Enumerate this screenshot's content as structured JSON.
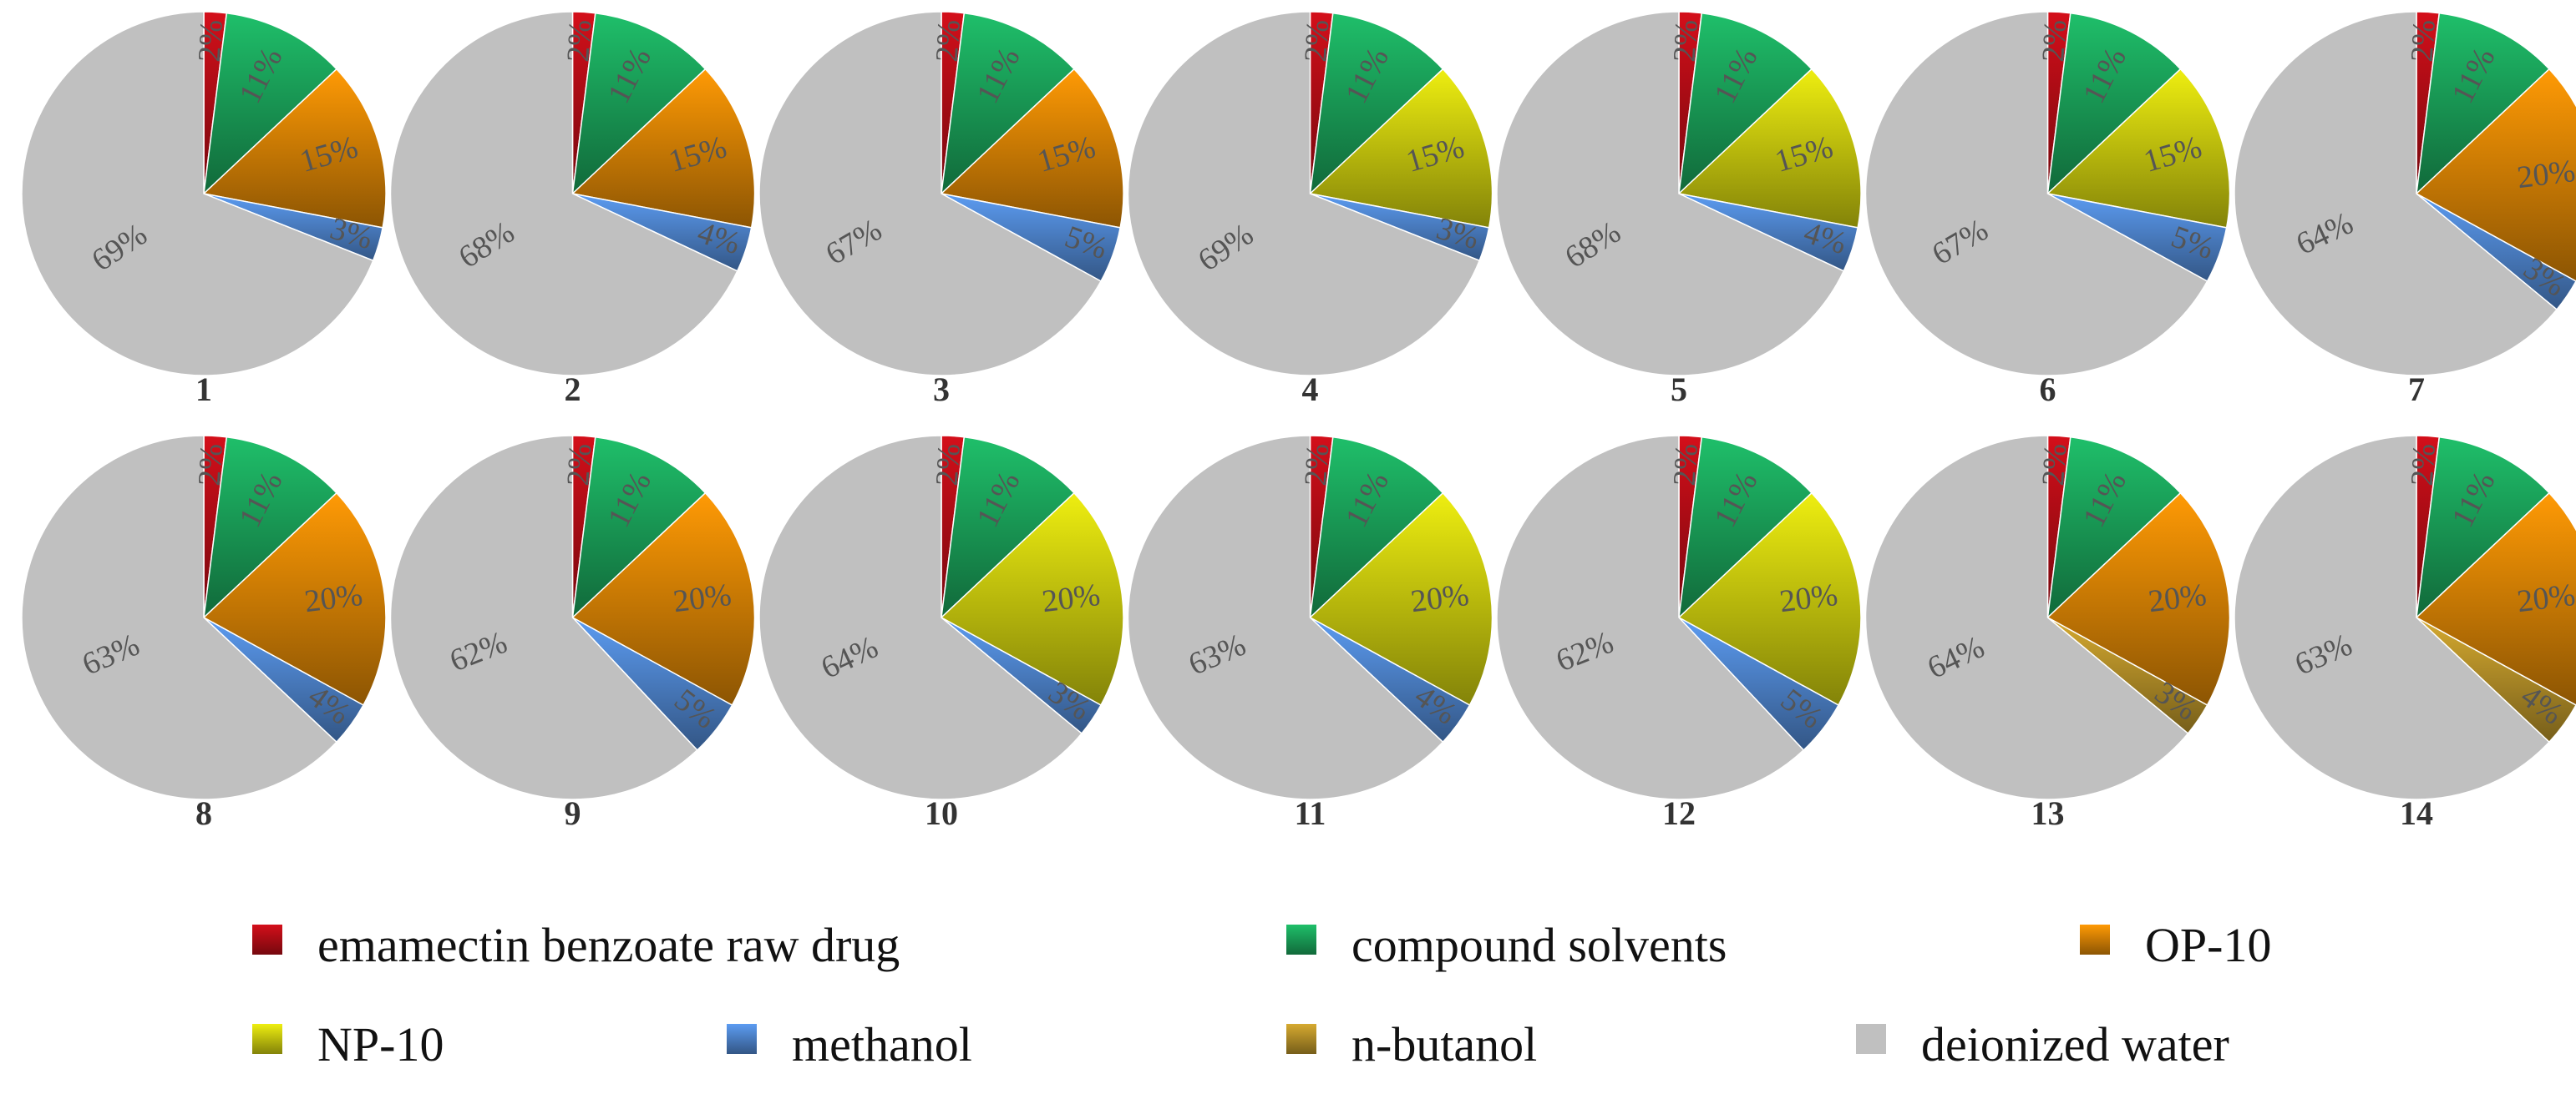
{
  "chart_data": {
    "type": "pie",
    "legend": {
      "placement": "bottom",
      "items": [
        {
          "key": "drug",
          "label": "emamectin benzoate raw drug",
          "color": "#d40f1a"
        },
        {
          "key": "solvents",
          "label": "compound solvents",
          "color": "#1fbf6a"
        },
        {
          "key": "op10",
          "label": "OP-10",
          "color": "#ff9a05"
        },
        {
          "key": "np10",
          "label": "NP-10",
          "color": "#eeee10"
        },
        {
          "key": "methanol",
          "label": "methanol",
          "color": "#5c9cf2"
        },
        {
          "key": "butanol",
          "label": "n-butanol",
          "color": "#d6aa30"
        },
        {
          "key": "water",
          "label": "deionized water",
          "color": "#c0c0c0"
        }
      ]
    },
    "pies": [
      {
        "number": "1",
        "slices": [
          {
            "key": "drug",
            "value": 2,
            "label": "2%"
          },
          {
            "key": "solvents",
            "value": 11,
            "label": "11%"
          },
          {
            "key": "op10",
            "value": 15,
            "label": "15%"
          },
          {
            "key": "methanol",
            "value": 3,
            "label": "3%"
          },
          {
            "key": "water",
            "value": 69,
            "label": "69%"
          }
        ]
      },
      {
        "number": "2",
        "slices": [
          {
            "key": "drug",
            "value": 2,
            "label": "2%"
          },
          {
            "key": "solvents",
            "value": 11,
            "label": "11%"
          },
          {
            "key": "op10",
            "value": 15,
            "label": "15%"
          },
          {
            "key": "methanol",
            "value": 4,
            "label": "4%"
          },
          {
            "key": "water",
            "value": 68,
            "label": "68%"
          }
        ]
      },
      {
        "number": "3",
        "slices": [
          {
            "key": "drug",
            "value": 2,
            "label": "2%"
          },
          {
            "key": "solvents",
            "value": 11,
            "label": "11%"
          },
          {
            "key": "op10",
            "value": 15,
            "label": "15%"
          },
          {
            "key": "methanol",
            "value": 5,
            "label": "5%"
          },
          {
            "key": "water",
            "value": 67,
            "label": "67%"
          }
        ]
      },
      {
        "number": "4",
        "slices": [
          {
            "key": "drug",
            "value": 2,
            "label": "2%"
          },
          {
            "key": "solvents",
            "value": 11,
            "label": "11%"
          },
          {
            "key": "np10",
            "value": 15,
            "label": "15%"
          },
          {
            "key": "methanol",
            "value": 3,
            "label": "3%"
          },
          {
            "key": "water",
            "value": 69,
            "label": "69%"
          }
        ]
      },
      {
        "number": "5",
        "slices": [
          {
            "key": "drug",
            "value": 2,
            "label": "2%"
          },
          {
            "key": "solvents",
            "value": 11,
            "label": "11%"
          },
          {
            "key": "np10",
            "value": 15,
            "label": "15%"
          },
          {
            "key": "methanol",
            "value": 4,
            "label": "4%"
          },
          {
            "key": "water",
            "value": 68,
            "label": "68%"
          }
        ]
      },
      {
        "number": "6",
        "slices": [
          {
            "key": "drug",
            "value": 2,
            "label": "2%"
          },
          {
            "key": "solvents",
            "value": 11,
            "label": "11%"
          },
          {
            "key": "np10",
            "value": 15,
            "label": "15%"
          },
          {
            "key": "methanol",
            "value": 5,
            "label": "5%"
          },
          {
            "key": "water",
            "value": 67,
            "label": "67%"
          }
        ]
      },
      {
        "number": "7",
        "slices": [
          {
            "key": "drug",
            "value": 2,
            "label": "2%"
          },
          {
            "key": "solvents",
            "value": 11,
            "label": "11%"
          },
          {
            "key": "op10",
            "value": 20,
            "label": "20%"
          },
          {
            "key": "methanol",
            "value": 3,
            "label": "3%"
          },
          {
            "key": "water",
            "value": 64,
            "label": "64%"
          }
        ]
      },
      {
        "number": "8",
        "slices": [
          {
            "key": "drug",
            "value": 2,
            "label": "2%"
          },
          {
            "key": "solvents",
            "value": 11,
            "label": "11%"
          },
          {
            "key": "op10",
            "value": 20,
            "label": "20%"
          },
          {
            "key": "methanol",
            "value": 4,
            "label": "4%"
          },
          {
            "key": "water",
            "value": 63,
            "label": "63%"
          }
        ]
      },
      {
        "number": "9",
        "slices": [
          {
            "key": "drug",
            "value": 2,
            "label": "2%"
          },
          {
            "key": "solvents",
            "value": 11,
            "label": "11%"
          },
          {
            "key": "op10",
            "value": 20,
            "label": "20%"
          },
          {
            "key": "methanol",
            "value": 5,
            "label": "5%"
          },
          {
            "key": "water",
            "value": 62,
            "label": "62%"
          }
        ]
      },
      {
        "number": "10",
        "slices": [
          {
            "key": "drug",
            "value": 2,
            "label": "2%"
          },
          {
            "key": "solvents",
            "value": 11,
            "label": "11%"
          },
          {
            "key": "np10",
            "value": 20,
            "label": "20%"
          },
          {
            "key": "methanol",
            "value": 3,
            "label": "3%"
          },
          {
            "key": "water",
            "value": 64,
            "label": "64%"
          }
        ]
      },
      {
        "number": "11",
        "slices": [
          {
            "key": "drug",
            "value": 2,
            "label": "2%"
          },
          {
            "key": "solvents",
            "value": 11,
            "label": "11%"
          },
          {
            "key": "np10",
            "value": 20,
            "label": "20%"
          },
          {
            "key": "methanol",
            "value": 4,
            "label": "4%"
          },
          {
            "key": "water",
            "value": 63,
            "label": "63%"
          }
        ]
      },
      {
        "number": "12",
        "slices": [
          {
            "key": "drug",
            "value": 2,
            "label": "2%"
          },
          {
            "key": "solvents",
            "value": 11,
            "label": "11%"
          },
          {
            "key": "np10",
            "value": 20,
            "label": "20%"
          },
          {
            "key": "methanol",
            "value": 5,
            "label": "5%"
          },
          {
            "key": "water",
            "value": 62,
            "label": "62%"
          }
        ]
      },
      {
        "number": "13",
        "slices": [
          {
            "key": "drug",
            "value": 2,
            "label": "2%"
          },
          {
            "key": "solvents",
            "value": 11,
            "label": "11%"
          },
          {
            "key": "op10",
            "value": 20,
            "label": "20%"
          },
          {
            "key": "butanol",
            "value": 3,
            "label": "3%"
          },
          {
            "key": "water",
            "value": 64,
            "label": "64%"
          }
        ]
      },
      {
        "number": "14",
        "slices": [
          {
            "key": "drug",
            "value": 2,
            "label": "2%"
          },
          {
            "key": "solvents",
            "value": 11,
            "label": "11%"
          },
          {
            "key": "op10",
            "value": 20,
            "label": "20%"
          },
          {
            "key": "butanol",
            "value": 4,
            "label": "4%"
          },
          {
            "key": "water",
            "value": 63,
            "label": "63%"
          }
        ]
      }
    ]
  }
}
